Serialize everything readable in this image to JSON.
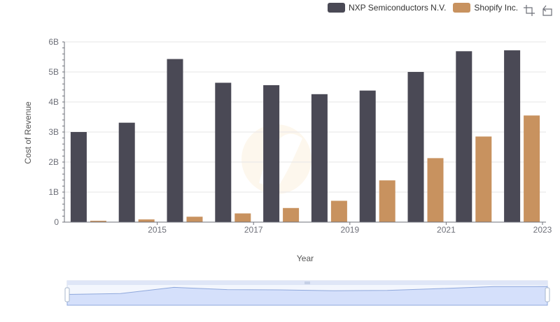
{
  "colors": {
    "nxp": "#4a4955",
    "shopify": "#c8925f",
    "grid": "#e6e6e6",
    "axis": "#6e7079",
    "zoom_fill": "#d5e0fb",
    "zoom_line": "#8fa8dc"
  },
  "toolbox": {
    "zoom_icon": "zoom-icon",
    "restore_icon": "restore-icon"
  },
  "chart_data": {
    "type": "bar",
    "xlabel": "Year",
    "ylabel": "Cost of Revenue",
    "x": [
      2014,
      2015,
      2016,
      2017,
      2018,
      2019,
      2020,
      2021,
      2022,
      2023
    ],
    "x_tick_labels": [
      "2015",
      "2017",
      "2019",
      "2021",
      "2023"
    ],
    "y_tick_labels": [
      "0",
      "1B",
      "2B",
      "3B",
      "4B",
      "5B",
      "6B"
    ],
    "ylim": [
      0,
      6000000000
    ],
    "grid": true,
    "legend_position": "top-right",
    "series": [
      {
        "name": "NXP Semiconductors N.V.",
        "values": [
          3000000000,
          3310000000,
          5430000000,
          4640000000,
          4560000000,
          4260000000,
          4380000000,
          5000000000,
          5690000000,
          5720000000
        ]
      },
      {
        "name": "Shopify Inc.",
        "values": [
          45000000,
          90000000,
          180000000,
          290000000,
          470000000,
          710000000,
          1390000000,
          2130000000,
          2850000000,
          3550000000
        ]
      }
    ]
  }
}
